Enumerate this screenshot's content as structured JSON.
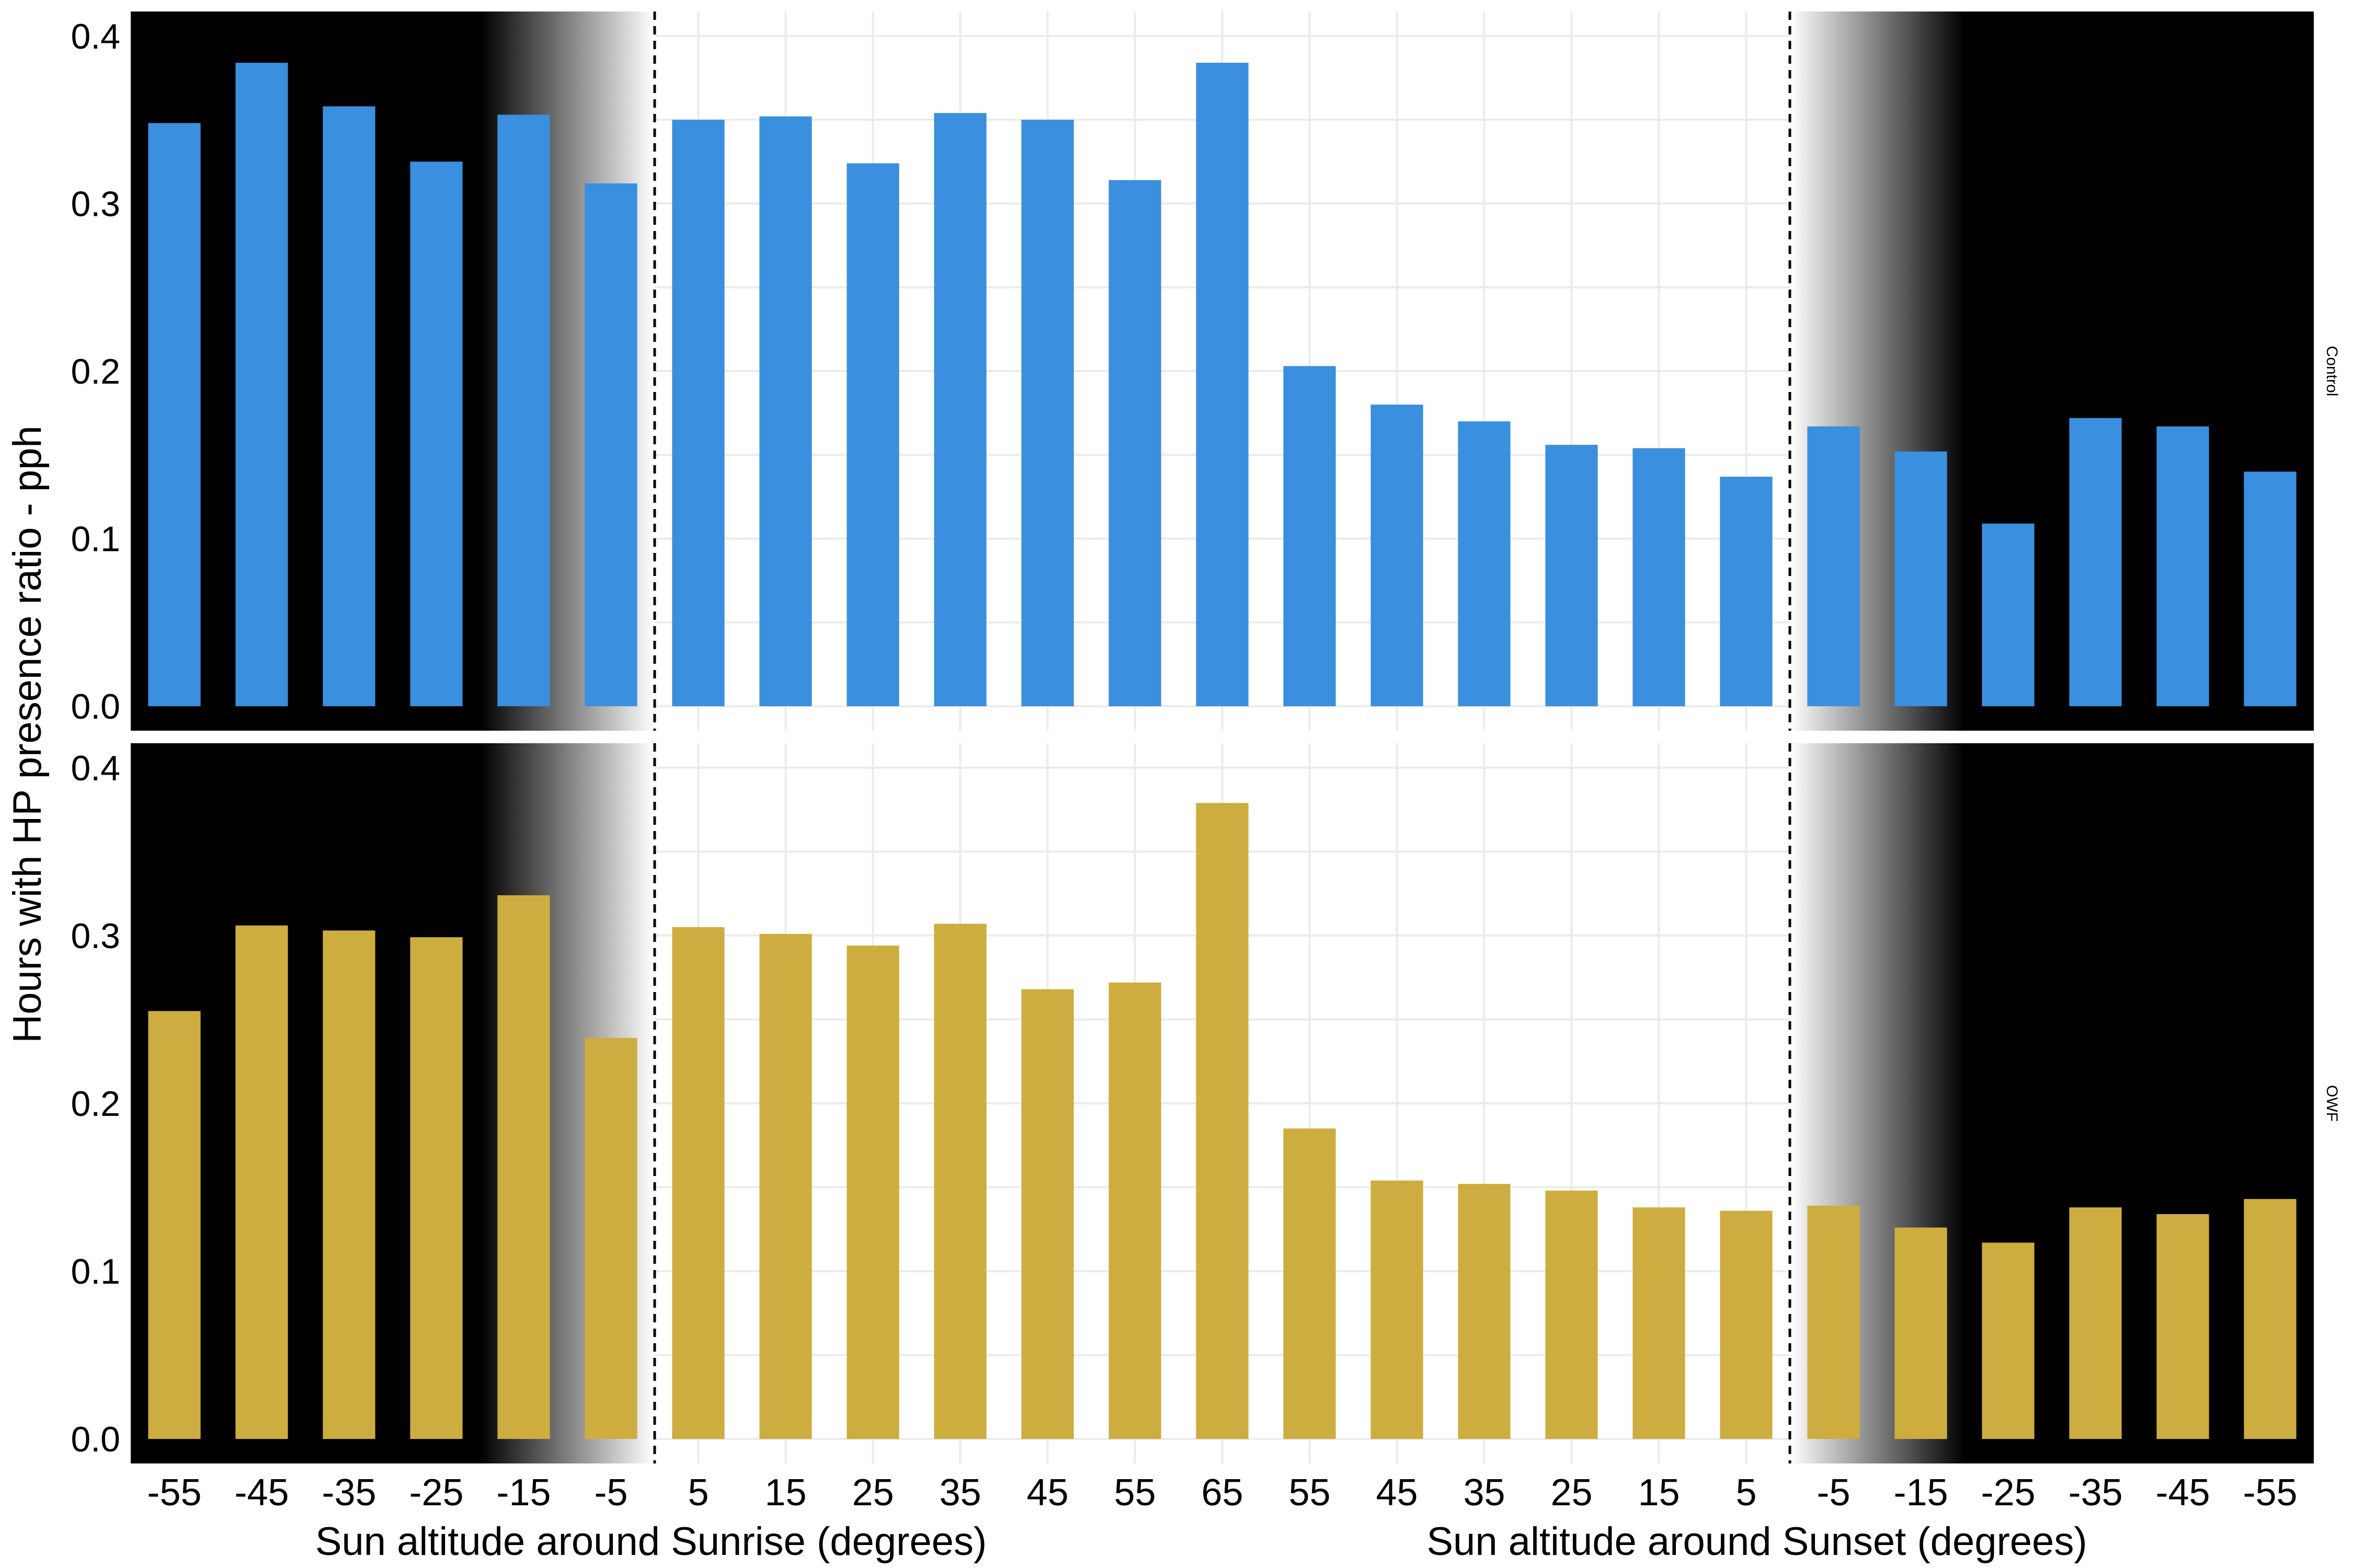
{
  "chart_data": {
    "type": "bar",
    "ylabel": "Hours with HP presence ratio - pph",
    "xlabels": {
      "sunrise": "Sun altitude around Sunrise (degrees)",
      "sunset": "Sun altitude around Sunset (degrees)"
    },
    "categories": [
      "-55",
      "-45",
      "-35",
      "-25",
      "-15",
      "-5",
      "5",
      "15",
      "25",
      "35",
      "45",
      "55",
      "65",
      "55",
      "45",
      "35",
      "25",
      "15",
      "5",
      "-5",
      "-15",
      "-25",
      "-35",
      "-45",
      "-55"
    ],
    "ylim": [
      0,
      0.4
    ],
    "yticks": [
      "0.0",
      "0.1",
      "0.2",
      "0.3",
      "0.4"
    ],
    "grid": true,
    "series": [
      {
        "name": "Control",
        "color": "#3a8fde",
        "values": [
          0.348,
          0.384,
          0.358,
          0.325,
          0.353,
          0.312,
          0.35,
          0.352,
          0.324,
          0.354,
          0.35,
          0.314,
          0.384,
          0.203,
          0.18,
          0.17,
          0.156,
          0.154,
          0.137,
          0.167,
          0.152,
          0.109,
          0.172,
          0.167,
          0.14
        ]
      },
      {
        "name": "OWF",
        "color": "#cdad3f",
        "values": [
          0.255,
          0.306,
          0.303,
          0.299,
          0.324,
          0.239,
          0.305,
          0.301,
          0.294,
          0.307,
          0.268,
          0.272,
          0.379,
          0.185,
          0.154,
          0.152,
          0.148,
          0.138,
          0.136,
          0.139,
          0.126,
          0.117,
          0.138,
          0.134,
          0.143
        ]
      }
    ]
  }
}
